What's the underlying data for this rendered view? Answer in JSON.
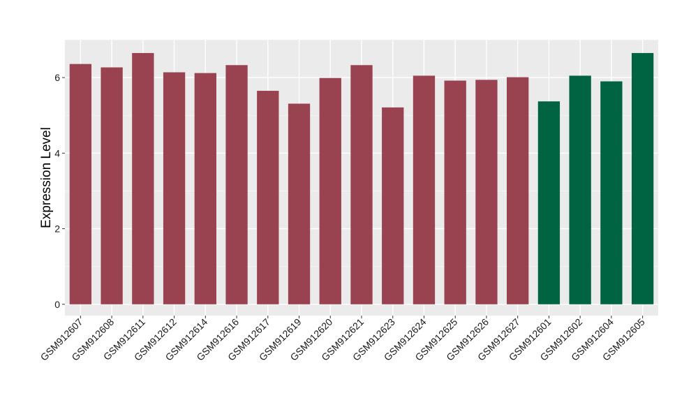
{
  "chart_data": {
    "type": "bar",
    "title": "",
    "xlabel": "",
    "ylabel": "Expression Level",
    "ylim": [
      -0.3,
      7.0
    ],
    "yticks": [
      0,
      2,
      4,
      6
    ],
    "grid": true,
    "legend": "none",
    "panel_background": "#ebebeb",
    "categories": [
      "GSM912607",
      "GSM912608",
      "GSM912611",
      "GSM912612",
      "GSM912614",
      "GSM912616",
      "GSM912617",
      "GSM912619",
      "GSM912620",
      "GSM912621",
      "GSM912623",
      "GSM912624",
      "GSM912625",
      "GSM912626",
      "GSM912627",
      "GSM912601",
      "GSM912602",
      "GSM912604",
      "GSM912605"
    ],
    "values": [
      6.36,
      6.27,
      6.65,
      6.14,
      6.12,
      6.33,
      5.65,
      5.31,
      5.99,
      6.33,
      5.21,
      6.05,
      5.92,
      5.94,
      6.01,
      5.37,
      6.05,
      5.9,
      6.65
    ],
    "groups": [
      "a",
      "a",
      "a",
      "a",
      "a",
      "a",
      "a",
      "a",
      "a",
      "a",
      "a",
      "a",
      "a",
      "a",
      "a",
      "b",
      "b",
      "b",
      "b"
    ],
    "group_colors": {
      "a": "#9a4350",
      "b": "#006442"
    }
  }
}
